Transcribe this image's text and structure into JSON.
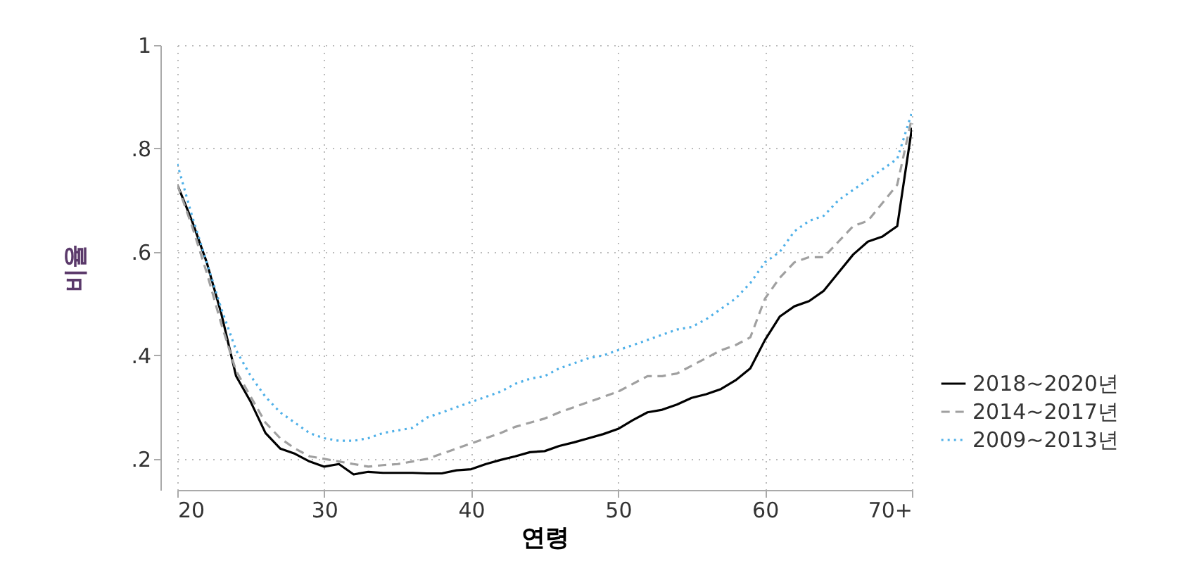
{
  "chart_data": {
    "type": "line",
    "xlabel": "연령",
    "ylabel": "비율",
    "x": [
      20,
      21,
      22,
      23,
      24,
      25,
      26,
      27,
      28,
      29,
      30,
      31,
      32,
      33,
      34,
      35,
      36,
      37,
      38,
      39,
      40,
      41,
      42,
      43,
      44,
      45,
      46,
      47,
      48,
      49,
      50,
      51,
      52,
      53,
      54,
      55,
      56,
      57,
      58,
      59,
      60,
      61,
      62,
      63,
      64,
      65,
      66,
      67,
      68,
      69,
      70
    ],
    "series": [
      {
        "name": "2018~2020년",
        "color": "#000000",
        "line_style": "solid",
        "values": [
          0.73,
          0.66,
          0.58,
          0.48,
          0.36,
          0.31,
          0.25,
          0.22,
          0.21,
          0.195,
          0.185,
          0.19,
          0.17,
          0.175,
          0.173,
          0.173,
          0.173,
          0.172,
          0.172,
          0.178,
          0.18,
          0.19,
          0.198,
          0.205,
          0.213,
          0.215,
          0.225,
          0.232,
          0.24,
          0.248,
          0.258,
          0.275,
          0.29,
          0.295,
          0.305,
          0.318,
          0.325,
          0.335,
          0.352,
          0.375,
          0.43,
          0.475,
          0.495,
          0.505,
          0.525,
          0.56,
          0.595,
          0.62,
          0.63,
          0.65,
          0.84
        ]
      },
      {
        "name": "2014~2017년",
        "color": "#a0a0a0",
        "line_style": "dashed",
        "values": [
          0.73,
          0.65,
          0.56,
          0.46,
          0.37,
          0.32,
          0.27,
          0.24,
          0.22,
          0.205,
          0.2,
          0.195,
          0.19,
          0.185,
          0.188,
          0.19,
          0.195,
          0.2,
          0.21,
          0.22,
          0.23,
          0.24,
          0.25,
          0.262,
          0.27,
          0.278,
          0.29,
          0.3,
          0.31,
          0.32,
          0.33,
          0.345,
          0.36,
          0.36,
          0.365,
          0.38,
          0.395,
          0.41,
          0.42,
          0.435,
          0.51,
          0.55,
          0.58,
          0.59,
          0.59,
          0.62,
          0.65,
          0.66,
          0.695,
          0.73,
          0.86
        ]
      },
      {
        "name": "2009~2013년",
        "color": "#4fb0e8",
        "line_style": "dotted",
        "values": [
          0.77,
          0.67,
          0.58,
          0.49,
          0.41,
          0.36,
          0.32,
          0.29,
          0.27,
          0.25,
          0.24,
          0.235,
          0.235,
          0.24,
          0.25,
          0.255,
          0.26,
          0.28,
          0.29,
          0.3,
          0.31,
          0.32,
          0.33,
          0.345,
          0.355,
          0.36,
          0.375,
          0.385,
          0.395,
          0.4,
          0.41,
          0.42,
          0.43,
          0.44,
          0.45,
          0.455,
          0.47,
          0.49,
          0.51,
          0.54,
          0.58,
          0.6,
          0.64,
          0.66,
          0.67,
          0.7,
          0.72,
          0.74,
          0.76,
          0.78,
          0.87
        ]
      }
    ],
    "xlim": [
      20,
      70
    ],
    "xticks": [
      20,
      30,
      40,
      50,
      60,
      {
        "value": 70,
        "label": "70+"
      }
    ],
    "ylim": [
      0.14,
      1
    ],
    "yticks": [
      {
        "value": 0.2,
        "label": ".2"
      },
      {
        "value": 0.4,
        "label": ".4"
      },
      {
        "value": 0.6,
        "label": ".6"
      },
      {
        "value": 0.8,
        "label": ".8"
      },
      1
    ],
    "grid": true,
    "legend": "bottom right"
  }
}
